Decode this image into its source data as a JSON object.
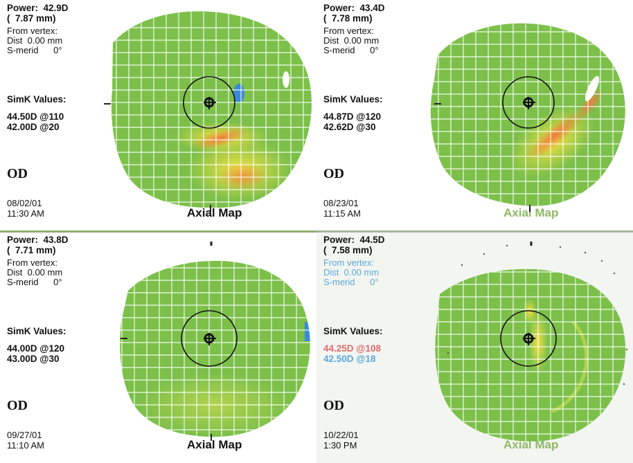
{
  "panels": [
    {
      "power": "Power:  42.9D",
      "radius": "(  7.87 mm)",
      "from_vertex": "From vertex:",
      "dist": "Dist  0.00 mm",
      "smerid": "S-merid      0°",
      "simk_title": "SimK Values:",
      "simk_1": "44.50D @110",
      "simk_2": "42.00D @20",
      "eye": "OD",
      "date": "08/02/01",
      "time": "11:30 AM",
      "map_title": "Axial Map"
    },
    {
      "power": "Power:  43.4D",
      "radius": "(  7.78 mm)",
      "from_vertex": "From vertex:",
      "dist": "Dist  0.00 mm",
      "smerid": "S-merid      0°",
      "simk_title": "SimK Values:",
      "simk_1": "44.87D @120",
      "simk_2": "42.62D @30",
      "eye": "OD",
      "date": "08/23/01",
      "time": "11:15 AM",
      "map_title": "Axial Map"
    },
    {
      "power": "Power:  43.8D",
      "radius": "(  7.71 mm)",
      "from_vertex": "From vertex:",
      "dist": "Dist  0.00 mm",
      "smerid": "S-merid      0°",
      "simk_title": "SimK Values:",
      "simk_1": "44.00D @120",
      "simk_2": "43.00D @30",
      "eye": "OD",
      "date": "09/27/01",
      "time": "11:10 AM",
      "map_title": "Axial Map"
    },
    {
      "power": "Power:  44.5D",
      "radius": "(  7.58 mm)",
      "from_vertex": "From vertex:",
      "dist": "Dist  0.00 mm",
      "smerid": "S-merid      0°",
      "simk_title": "SimK Values:",
      "simk_1": "44.25D @108",
      "simk_2": "42.50D @18",
      "eye": "OD",
      "date": "10/22/01",
      "time": "1:30 PM",
      "map_title": "Axial Map"
    }
  ],
  "colors": {
    "map_green": "#7cc04a",
    "map_yellow": "#e8e040",
    "map_orange": "#f08a3a",
    "map_blue": "#3a8ad8",
    "accent_green": "#8fb86a"
  }
}
